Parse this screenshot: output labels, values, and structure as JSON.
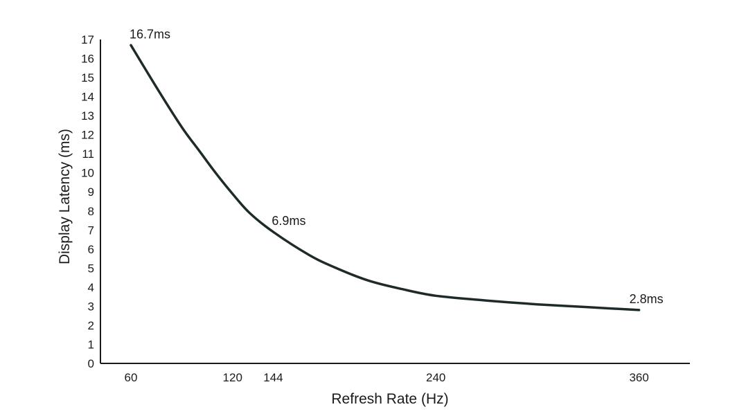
{
  "chart_data": {
    "type": "line",
    "xlabel": "Refresh Rate (Hz)",
    "ylabel": "Display Latency (ms)",
    "x_ticks": [
      60,
      120,
      144,
      240,
      360
    ],
    "y_ticks": [
      0,
      1,
      2,
      3,
      4,
      5,
      6,
      7,
      8,
      9,
      10,
      11,
      12,
      13,
      14,
      15,
      16,
      17
    ],
    "xlim": [
      42,
      390
    ],
    "ylim": [
      0,
      17
    ],
    "grid": false,
    "line_color": "#1f2a2a",
    "series": [
      {
        "x": [
          60,
          75,
          90,
          100,
          110,
          120,
          130,
          144,
          165,
          180,
          200,
          220,
          240,
          270,
          300,
          330,
          360
        ],
        "values": [
          16.7,
          14.5,
          12.4,
          11.2,
          10.0,
          8.9,
          7.9,
          6.9,
          5.7,
          5.05,
          4.35,
          3.9,
          3.55,
          3.3,
          3.1,
          2.95,
          2.8
        ]
      }
    ],
    "annotations": [
      {
        "x": 60,
        "y": 16.7,
        "text": "16.7ms"
      },
      {
        "x": 144,
        "y": 6.9,
        "text": "6.9ms"
      },
      {
        "x": 360,
        "y": 2.8,
        "text": "2.8ms"
      }
    ]
  }
}
